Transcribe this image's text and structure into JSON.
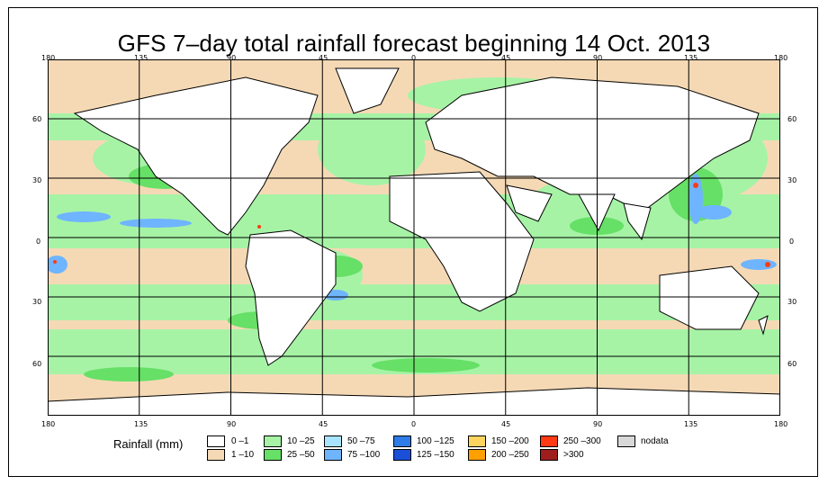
{
  "title": "GFS 7–day total rainfall forecast beginning 14 Oct. 2013",
  "lon_ticks": [
    "180",
    "135",
    "90",
    "45",
    "0",
    "45",
    "90",
    "135",
    "180"
  ],
  "lat_ticks": [
    "60",
    "30",
    "0",
    "30",
    "60"
  ],
  "legend": {
    "title": "Rainfall (mm)",
    "items": [
      {
        "label": "0 –1",
        "color": "#ffffff"
      },
      {
        "label": "1 –10",
        "color": "#f5d9b5"
      },
      {
        "label": "10 –25",
        "color": "#a6f3a6"
      },
      {
        "label": "25 –50",
        "color": "#66e066"
      },
      {
        "label": "50 –75",
        "color": "#a8e4ff"
      },
      {
        "label": "75 –100",
        "color": "#6fb4ff"
      },
      {
        "label": "100 –125",
        "color": "#2f7be8"
      },
      {
        "label": "125 –150",
        "color": "#1a4fd8"
      },
      {
        "label": "150 –200",
        "color": "#ffd45e"
      },
      {
        "label": "200 –250",
        "color": "#ff9f00"
      },
      {
        "label": "250 –300",
        "color": "#ff3a14"
      },
      {
        "label": ">300",
        "color": "#a01d1d"
      },
      {
        "label": "nodata",
        "color": "#d8d8d8"
      }
    ]
  }
}
